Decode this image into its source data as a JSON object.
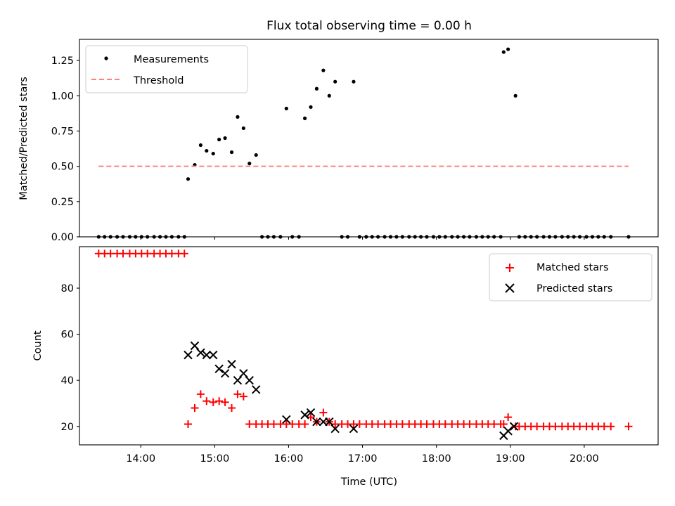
{
  "chart_data": [
    {
      "type": "scatter",
      "title": "Flux total observing time = 0.00 h",
      "xlabel": "",
      "ylabel": "Matched/Predicted stars",
      "xlim": [
        13.17,
        21.0
      ],
      "ylim": [
        0,
        1.4
      ],
      "yticks": [
        "0.00",
        "0.25",
        "0.50",
        "0.75",
        "1.00",
        "1.25"
      ],
      "ytick_values": [
        0,
        0.25,
        0.5,
        0.75,
        1.0,
        1.25
      ],
      "legend": {
        "placement": "top-left",
        "entries": [
          "Measurements",
          "Threshold"
        ]
      },
      "series": [
        {
          "name": "Measurements",
          "color": "#000000",
          "marker": "dot",
          "x": [
            13.43,
            13.51,
            13.59,
            13.68,
            13.76,
            13.85,
            13.93,
            14.01,
            14.09,
            14.18,
            14.26,
            14.34,
            14.42,
            14.51,
            14.59,
            14.64,
            14.73,
            14.81,
            14.89,
            14.98,
            15.06,
            15.14,
            15.23,
            15.31,
            15.39,
            15.47,
            15.56,
            15.64,
            15.72,
            15.8,
            15.89,
            15.97,
            16.05,
            16.14,
            16.22,
            16.3,
            16.38,
            16.47,
            16.55,
            16.63,
            16.72,
            16.8,
            16.88,
            16.96,
            17.05,
            17.13,
            17.21,
            17.3,
            17.38,
            17.46,
            17.54,
            17.63,
            17.71,
            17.79,
            17.87,
            17.96,
            18.04,
            18.12,
            18.21,
            18.29,
            18.37,
            18.45,
            18.54,
            18.62,
            18.7,
            18.78,
            18.87,
            18.91,
            18.97,
            19.07,
            19.12,
            19.2,
            19.28,
            19.36,
            19.45,
            19.53,
            19.61,
            19.7,
            19.78,
            19.86,
            19.94,
            20.03,
            20.11,
            20.19,
            20.27,
            20.36,
            20.6
          ],
          "y": [
            0,
            0,
            0,
            0,
            0,
            0,
            0,
            0,
            0,
            0,
            0,
            0,
            0,
            0,
            0,
            0.41,
            0.51,
            0.65,
            0.61,
            0.59,
            0.69,
            0.7,
            0.6,
            0.85,
            0.77,
            0.52,
            0.58,
            0,
            0,
            0,
            0,
            0.91,
            0,
            0,
            0.84,
            0.92,
            1.05,
            1.18,
            1.0,
            1.1,
            0,
            0,
            1.1,
            0,
            0,
            0,
            0,
            0,
            0,
            0,
            0,
            0,
            0,
            0,
            0,
            0,
            0,
            0,
            0,
            0,
            0,
            0,
            0,
            0,
            0,
            0,
            0,
            1.31,
            1.33,
            1.0,
            0,
            0,
            0,
            0,
            0,
            0,
            0,
            0,
            0,
            0,
            0,
            0,
            0,
            0,
            0,
            0,
            0
          ]
        },
        {
          "name": "Threshold",
          "color": "#ff8080",
          "style": "dashed",
          "x": [
            13.43,
            20.6
          ],
          "y": [
            0.5,
            0.5
          ]
        }
      ]
    },
    {
      "type": "scatter",
      "title": "",
      "xlabel": "Time (UTC)",
      "ylabel": "Count",
      "xlim": [
        13.17,
        21.0
      ],
      "ylim": [
        12,
        98
      ],
      "yticks": [
        "20",
        "40",
        "60",
        "80"
      ],
      "ytick_values": [
        20,
        40,
        60,
        80
      ],
      "xticks": [
        "14:00",
        "15:00",
        "16:00",
        "17:00",
        "18:00",
        "19:00",
        "20:00"
      ],
      "xtick_values": [
        14,
        15,
        16,
        17,
        18,
        19,
        20
      ],
      "legend": {
        "placement": "top-right",
        "entries": [
          "Matched stars",
          "Predicted stars"
        ]
      },
      "series": [
        {
          "name": "Matched stars",
          "color": "#ff0000",
          "marker": "plus",
          "x": [
            13.43,
            13.51,
            13.59,
            13.68,
            13.76,
            13.85,
            13.93,
            14.01,
            14.09,
            14.18,
            14.26,
            14.34,
            14.42,
            14.51,
            14.59,
            14.64,
            14.73,
            14.81,
            14.89,
            14.98,
            15.06,
            15.14,
            15.23,
            15.31,
            15.39,
            15.47,
            15.56,
            15.64,
            15.72,
            15.8,
            15.89,
            15.97,
            16.05,
            16.14,
            16.22,
            16.3,
            16.38,
            16.47,
            16.55,
            16.63,
            16.72,
            16.8,
            16.88,
            16.96,
            17.05,
            17.13,
            17.21,
            17.3,
            17.38,
            17.46,
            17.54,
            17.63,
            17.71,
            17.79,
            17.87,
            17.96,
            18.04,
            18.12,
            18.21,
            18.29,
            18.37,
            18.45,
            18.54,
            18.62,
            18.7,
            18.78,
            18.87,
            18.91,
            18.97,
            19.07,
            19.12,
            19.2,
            19.28,
            19.36,
            19.45,
            19.53,
            19.61,
            19.7,
            19.78,
            19.86,
            19.94,
            20.03,
            20.11,
            20.19,
            20.27,
            20.36,
            20.6
          ],
          "y": [
            95,
            95,
            95,
            95,
            95,
            95,
            95,
            95,
            95,
            95,
            95,
            95,
            95,
            95,
            95,
            21,
            28,
            34,
            31,
            30.5,
            31,
            30.5,
            28,
            34,
            33,
            21,
            21,
            21,
            21,
            21,
            21,
            21,
            21,
            21,
            21,
            24,
            22,
            26,
            22,
            21,
            21,
            21,
            21,
            21,
            21,
            21,
            21,
            21,
            21,
            21,
            21,
            21,
            21,
            21,
            21,
            21,
            21,
            21,
            21,
            21,
            21,
            21,
            21,
            21,
            21,
            21,
            21,
            21,
            24,
            20,
            20,
            20,
            20,
            20,
            20,
            20,
            20,
            20,
            20,
            20,
            20,
            20,
            20,
            20,
            20,
            20,
            20
          ]
        },
        {
          "name": "Predicted stars",
          "color": "#000000",
          "marker": "x",
          "x": [
            14.64,
            14.73,
            14.81,
            14.89,
            14.98,
            15.06,
            15.14,
            15.23,
            15.31,
            15.39,
            15.47,
            15.56,
            15.97,
            16.22,
            16.3,
            16.38,
            16.47,
            16.55,
            16.63,
            16.88,
            18.91,
            18.97,
            19.05
          ],
          "y": [
            51,
            55,
            52,
            51,
            51,
            45,
            43,
            47,
            40,
            43,
            40,
            36,
            23,
            25,
            26,
            22,
            22,
            22,
            19,
            19,
            16,
            18,
            20
          ]
        }
      ]
    }
  ]
}
